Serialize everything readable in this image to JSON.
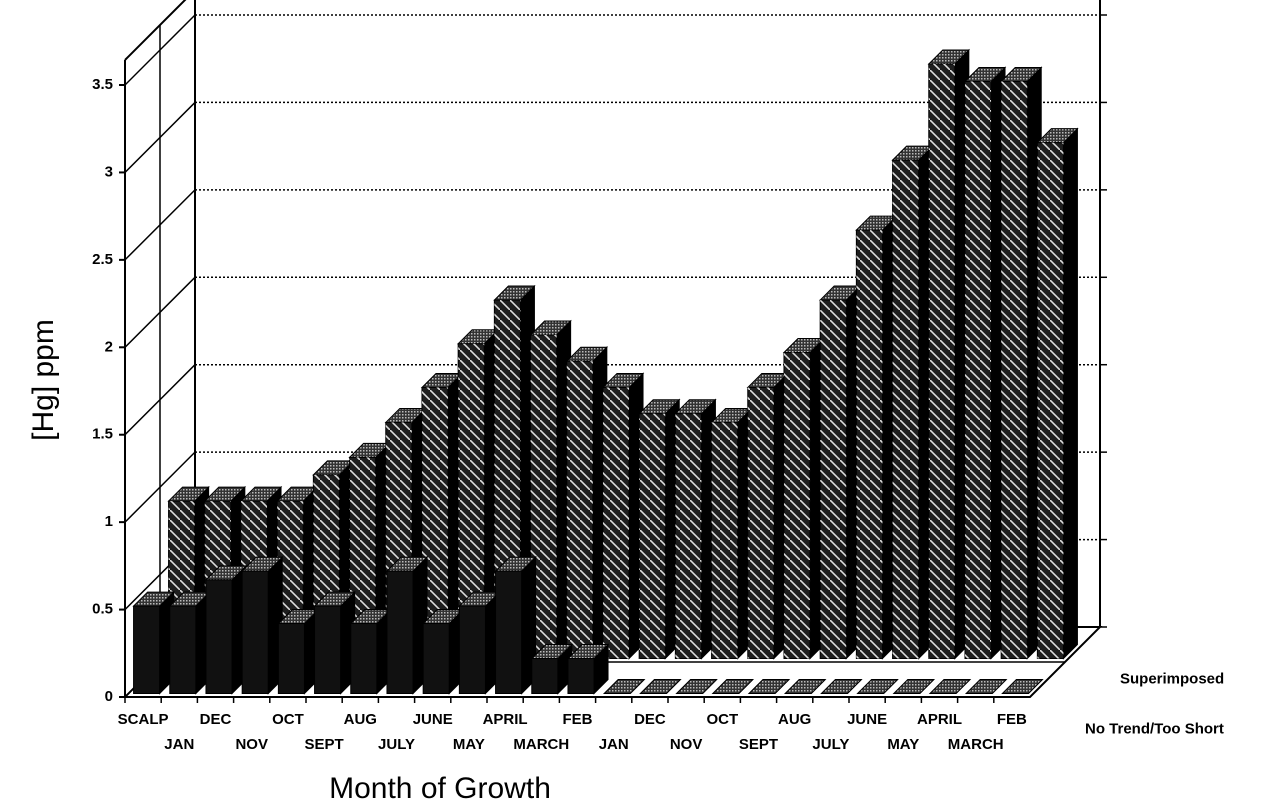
{
  "chart_data": {
    "type": "bar3d",
    "xlabel": "Month of Growth",
    "ylabel": "[Hg] ppm",
    "categories": [
      "SCALP",
      "JAN",
      "DEC",
      "NOV",
      "OCT",
      "SEPT",
      "AUG",
      "JULY",
      "JUNE",
      "MAY",
      "APRIL",
      "MARCH",
      "FEB",
      "JAN",
      "DEC",
      "NOV",
      "OCT",
      "SEPT",
      "AUG",
      "JULY",
      "JUNE",
      "MAY",
      "APRIL",
      "MARCH",
      "FEB"
    ],
    "series": [
      {
        "name": "Superimposed",
        "color": "#1e1e1e",
        "values": [
          0.9,
          0.9,
          0.9,
          0.9,
          1.05,
          1.15,
          1.35,
          1.55,
          1.8,
          2.05,
          1.85,
          1.7,
          1.55,
          1.4,
          1.4,
          1.35,
          1.55,
          1.75,
          2.05,
          2.45,
          2.85,
          3.4,
          3.3,
          3.3,
          2.95
        ]
      },
      {
        "name": "No Trend/Too Short",
        "color": "#111111",
        "values": [
          0.5,
          0.5,
          0.65,
          0.7,
          0.4,
          0.5,
          0.4,
          0.7,
          0.4,
          0.5,
          0.7,
          0.2,
          0.2,
          0,
          0,
          0,
          0,
          0,
          0,
          0,
          0,
          0,
          0,
          0,
          0
        ]
      }
    ],
    "ylim": [
      0,
      3.5
    ],
    "yticks": [
      0,
      0.5,
      1,
      1.5,
      2,
      2.5,
      3,
      3.5
    ],
    "grid": true
  }
}
